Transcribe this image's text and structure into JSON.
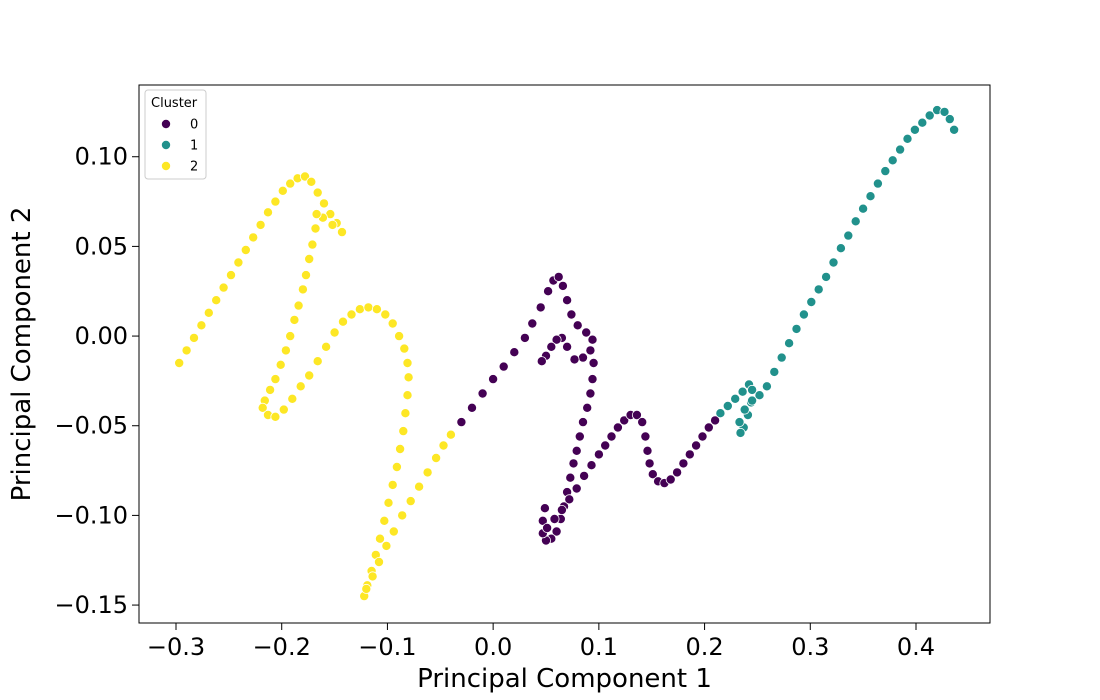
{
  "chart_data": {
    "type": "scatter",
    "xlabel": "Principal Component 1",
    "ylabel": "Principal Component 2",
    "xlim": [
      -0.335,
      0.47
    ],
    "ylim": [
      -0.16,
      0.14
    ],
    "xticks": [
      {
        "value": -0.3,
        "label": "−0.3"
      },
      {
        "value": -0.2,
        "label": "−0.2"
      },
      {
        "value": -0.1,
        "label": "−0.1"
      },
      {
        "value": 0.0,
        "label": "0.0"
      },
      {
        "value": 0.1,
        "label": "0.1"
      },
      {
        "value": 0.2,
        "label": "0.2"
      },
      {
        "value": 0.3,
        "label": "0.3"
      },
      {
        "value": 0.4,
        "label": "0.4"
      }
    ],
    "yticks": [
      {
        "value": -0.15,
        "label": "−0.15"
      },
      {
        "value": -0.1,
        "label": "−0.10"
      },
      {
        "value": -0.05,
        "label": "−0.05"
      },
      {
        "value": 0.0,
        "label": "0.00"
      },
      {
        "value": 0.05,
        "label": "0.05"
      },
      {
        "value": 0.1,
        "label": "0.10"
      }
    ],
    "grid": false,
    "legend": {
      "title": "Cluster",
      "placement": "upper-left"
    },
    "series": [
      {
        "name": "0",
        "color": "#440154",
        "points": [
          [
            -0.03,
            -0.048
          ],
          [
            -0.02,
            -0.04
          ],
          [
            -0.01,
            -0.032
          ],
          [
            0.0,
            -0.024
          ],
          [
            0.01,
            -0.017
          ],
          [
            0.02,
            -0.009
          ],
          [
            0.03,
            -0.001
          ],
          [
            0.037,
            0.007
          ],
          [
            0.045,
            0.016
          ],
          [
            0.052,
            0.025
          ],
          [
            0.057,
            0.031
          ],
          [
            0.062,
            0.033
          ],
          [
            0.066,
            0.028
          ],
          [
            0.07,
            0.02
          ],
          [
            0.074,
            0.012
          ],
          [
            0.08,
            0.006
          ],
          [
            0.088,
            0.002
          ],
          [
            0.094,
            -0.002
          ],
          [
            0.092,
            -0.008
          ],
          [
            0.085,
            -0.012
          ],
          [
            0.077,
            -0.013
          ],
          [
            0.07,
            -0.006
          ],
          [
            0.065,
            -0.001
          ],
          [
            0.06,
            -0.002
          ],
          [
            0.055,
            -0.006
          ],
          [
            0.05,
            -0.011
          ],
          [
            0.046,
            -0.014
          ],
          [
            0.095,
            -0.015
          ],
          [
            0.094,
            -0.024
          ],
          [
            0.092,
            -0.032
          ],
          [
            0.089,
            -0.04
          ],
          [
            0.085,
            -0.048
          ],
          [
            0.082,
            -0.056
          ],
          [
            0.079,
            -0.064
          ],
          [
            0.076,
            -0.071
          ],
          [
            0.073,
            -0.079
          ],
          [
            0.07,
            -0.087
          ],
          [
            0.067,
            -0.095
          ],
          [
            0.064,
            -0.102
          ],
          [
            0.06,
            -0.109
          ],
          [
            0.055,
            -0.113
          ],
          [
            0.05,
            -0.114
          ],
          [
            0.047,
            -0.11
          ],
          [
            0.047,
            -0.103
          ],
          [
            0.049,
            -0.096
          ],
          [
            0.051,
            -0.107
          ],
          [
            0.058,
            -0.102
          ],
          [
            0.065,
            -0.097
          ],
          [
            0.072,
            -0.091
          ],
          [
            0.079,
            -0.085
          ],
          [
            0.086,
            -0.078
          ],
          [
            0.093,
            -0.072
          ],
          [
            0.1,
            -0.066
          ],
          [
            0.106,
            -0.061
          ],
          [
            0.112,
            -0.056
          ],
          [
            0.118,
            -0.051
          ],
          [
            0.124,
            -0.047
          ],
          [
            0.13,
            -0.044
          ],
          [
            0.136,
            -0.044
          ],
          [
            0.141,
            -0.048
          ],
          [
            0.144,
            -0.056
          ],
          [
            0.146,
            -0.064
          ],
          [
            0.148,
            -0.071
          ],
          [
            0.151,
            -0.077
          ],
          [
            0.156,
            -0.081
          ],
          [
            0.162,
            -0.082
          ],
          [
            0.168,
            -0.08
          ],
          [
            0.174,
            -0.076
          ],
          [
            0.18,
            -0.071
          ],
          [
            0.186,
            -0.066
          ],
          [
            0.192,
            -0.061
          ],
          [
            0.198,
            -0.056
          ],
          [
            0.204,
            -0.051
          ],
          [
            0.21,
            -0.047
          ]
        ]
      },
      {
        "name": "1",
        "color": "#21918c",
        "points": [
          [
            0.215,
            -0.043
          ],
          [
            0.222,
            -0.039
          ],
          [
            0.229,
            -0.035
          ],
          [
            0.236,
            -0.031
          ],
          [
            0.242,
            -0.027
          ],
          [
            0.245,
            -0.03
          ],
          [
            0.244,
            -0.037
          ],
          [
            0.241,
            -0.044
          ],
          [
            0.237,
            -0.051
          ],
          [
            0.234,
            -0.054
          ],
          [
            0.233,
            -0.048
          ],
          [
            0.238,
            -0.041
          ],
          [
            0.245,
            -0.036
          ],
          [
            0.252,
            -0.033
          ],
          [
            0.259,
            -0.028
          ],
          [
            0.266,
            -0.02
          ],
          [
            0.273,
            -0.012
          ],
          [
            0.28,
            -0.004
          ],
          [
            0.287,
            0.004
          ],
          [
            0.294,
            0.012
          ],
          [
            0.301,
            0.019
          ],
          [
            0.308,
            0.026
          ],
          [
            0.315,
            0.033
          ],
          [
            0.322,
            0.041
          ],
          [
            0.329,
            0.049
          ],
          [
            0.336,
            0.056
          ],
          [
            0.343,
            0.064
          ],
          [
            0.35,
            0.071
          ],
          [
            0.357,
            0.078
          ],
          [
            0.364,
            0.085
          ],
          [
            0.371,
            0.092
          ],
          [
            0.378,
            0.098
          ],
          [
            0.385,
            0.104
          ],
          [
            0.392,
            0.11
          ],
          [
            0.399,
            0.115
          ],
          [
            0.406,
            0.119
          ],
          [
            0.413,
            0.123
          ],
          [
            0.42,
            0.126
          ],
          [
            0.427,
            0.125
          ],
          [
            0.432,
            0.121
          ],
          [
            0.436,
            0.115
          ]
        ]
      },
      {
        "name": "2",
        "color": "#fde725",
        "points": [
          [
            -0.297,
            -0.015
          ],
          [
            -0.29,
            -0.008
          ],
          [
            -0.283,
            -0.001
          ],
          [
            -0.276,
            0.006
          ],
          [
            -0.269,
            0.013
          ],
          [
            -0.262,
            0.02
          ],
          [
            -0.255,
            0.027
          ],
          [
            -0.248,
            0.034
          ],
          [
            -0.241,
            0.041
          ],
          [
            -0.234,
            0.048
          ],
          [
            -0.227,
            0.055
          ],
          [
            -0.22,
            0.062
          ],
          [
            -0.213,
            0.069
          ],
          [
            -0.206,
            0.075
          ],
          [
            -0.199,
            0.081
          ],
          [
            -0.192,
            0.085
          ],
          [
            -0.185,
            0.088
          ],
          [
            -0.178,
            0.089
          ],
          [
            -0.172,
            0.086
          ],
          [
            -0.166,
            0.08
          ],
          [
            -0.16,
            0.074
          ],
          [
            -0.154,
            0.068
          ],
          [
            -0.148,
            0.063
          ],
          [
            -0.143,
            0.058
          ],
          [
            -0.152,
            0.062
          ],
          [
            -0.161,
            0.066
          ],
          [
            -0.167,
            0.068
          ],
          [
            -0.168,
            0.06
          ],
          [
            -0.171,
            0.051
          ],
          [
            -0.174,
            0.043
          ],
          [
            -0.177,
            0.034
          ],
          [
            -0.18,
            0.026
          ],
          [
            -0.184,
            0.017
          ],
          [
            -0.188,
            0.009
          ],
          [
            -0.192,
            0.0
          ],
          [
            -0.196,
            -0.008
          ],
          [
            -0.201,
            -0.016
          ],
          [
            -0.206,
            -0.024
          ],
          [
            -0.211,
            -0.03
          ],
          [
            -0.216,
            -0.036
          ],
          [
            -0.218,
            -0.04
          ],
          [
            -0.213,
            -0.044
          ],
          [
            -0.206,
            -0.045
          ],
          [
            -0.198,
            -0.041
          ],
          [
            -0.19,
            -0.035
          ],
          [
            -0.182,
            -0.028
          ],
          [
            -0.174,
            -0.022
          ],
          [
            -0.166,
            -0.014
          ],
          [
            -0.158,
            -0.006
          ],
          [
            -0.15,
            0.002
          ],
          [
            -0.142,
            0.008
          ],
          [
            -0.134,
            0.012
          ],
          [
            -0.126,
            0.015
          ],
          [
            -0.118,
            0.016
          ],
          [
            -0.11,
            0.015
          ],
          [
            -0.102,
            0.012
          ],
          [
            -0.095,
            0.007
          ],
          [
            -0.089,
            0.0
          ],
          [
            -0.084,
            -0.007
          ],
          [
            -0.081,
            -0.015
          ],
          [
            -0.08,
            -0.023
          ],
          [
            -0.081,
            -0.033
          ],
          [
            -0.083,
            -0.043
          ],
          [
            -0.085,
            -0.053
          ],
          [
            -0.088,
            -0.063
          ],
          [
            -0.091,
            -0.073
          ],
          [
            -0.095,
            -0.083
          ],
          [
            -0.099,
            -0.093
          ],
          [
            -0.103,
            -0.103
          ],
          [
            -0.107,
            -0.113
          ],
          [
            -0.111,
            -0.122
          ],
          [
            -0.115,
            -0.131
          ],
          [
            -0.119,
            -0.139
          ],
          [
            -0.122,
            -0.145
          ],
          [
            -0.12,
            -0.141
          ],
          [
            -0.114,
            -0.134
          ],
          [
            -0.108,
            -0.126
          ],
          [
            -0.101,
            -0.117
          ],
          [
            -0.094,
            -0.109
          ],
          [
            -0.086,
            -0.1
          ],
          [
            -0.078,
            -0.092
          ],
          [
            -0.07,
            -0.084
          ],
          [
            -0.062,
            -0.076
          ],
          [
            -0.054,
            -0.068
          ],
          [
            -0.047,
            -0.061
          ],
          [
            -0.04,
            -0.055
          ]
        ]
      }
    ]
  }
}
